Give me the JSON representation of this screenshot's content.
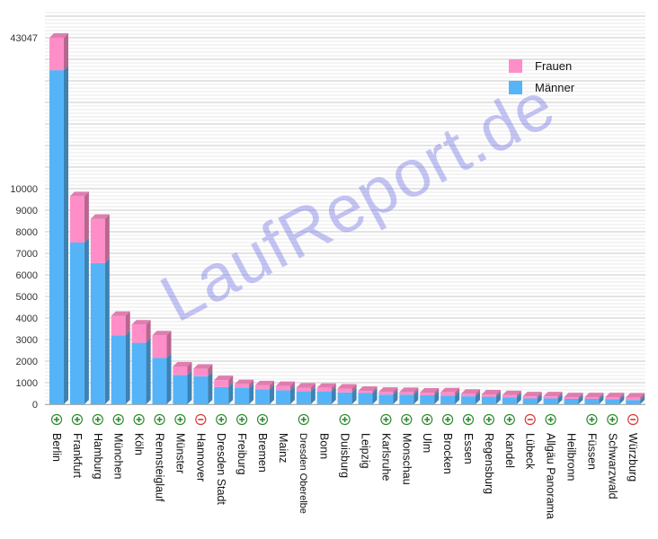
{
  "watermark": "LaufReport.de",
  "chart_data": {
    "type": "bar",
    "stacked": true,
    "categories": [
      "Berlin",
      "Frankfurt",
      "Hamburg",
      "München",
      "Köln",
      "Rennsteiglauf",
      "Münster",
      "Hannover",
      "Dresden Stadt",
      "Freiburg",
      "Bremen",
      "Mainz",
      "Dresden Oberelbe",
      "Bonn",
      "Duisburg",
      "Leipzig",
      "Karlsruhe",
      "Monschau",
      "Ulm",
      "Brocken",
      "Essen",
      "Regensburg",
      "Kandel",
      "Lübeck",
      "Allgäu Panorama",
      "Heilbronn",
      "Füssen",
      "Schwarzwald",
      "Würzburg"
    ],
    "series": [
      {
        "name": "Männer",
        "color": "#55b4f8",
        "values": [
          35000,
          7500,
          6550,
          3200,
          2850,
          2150,
          1350,
          1300,
          800,
          750,
          700,
          650,
          600,
          600,
          550,
          520,
          450,
          450,
          420,
          400,
          370,
          350,
          320,
          270,
          270,
          250,
          250,
          230,
          200
        ]
      },
      {
        "name": "Frauen",
        "color": "#ff8ec8",
        "values": [
          8047,
          2150,
          2050,
          900,
          850,
          1050,
          400,
          350,
          320,
          180,
          180,
          200,
          170,
          160,
          180,
          100,
          130,
          120,
          120,
          150,
          120,
          110,
          100,
          100,
          100,
          80,
          80,
          100,
          120
        ]
      }
    ],
    "trend": [
      "up",
      "up",
      "up",
      "up",
      "up",
      "up",
      "up",
      "down",
      "up",
      "up",
      "up",
      "",
      "up",
      "",
      "up",
      "",
      "up",
      "up",
      "up",
      "up",
      "up",
      "up",
      "up",
      "down",
      "up",
      "",
      "up",
      "up",
      "down"
    ],
    "y_tick_labels": [
      "0",
      "1000",
      "2000",
      "3000",
      "4000",
      "5000",
      "6000",
      "7000",
      "8000",
      "9000",
      "10000",
      "43047"
    ],
    "y_break": {
      "from": 11000,
      "to": 43047
    },
    "ylim": [
      0,
      43047
    ],
    "legend_position": "top-right",
    "grid": true
  }
}
